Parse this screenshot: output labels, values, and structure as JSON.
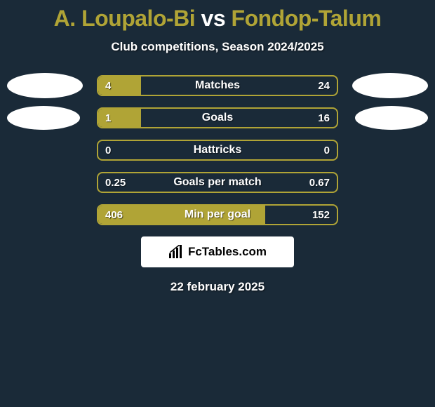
{
  "colors": {
    "bg": "#1a2a38",
    "accent": "#b0a436",
    "white": "#ffffff",
    "text_shadow": "rgba(0,0,0,0.55)"
  },
  "title": {
    "player1": "A. Loupalo-Bi",
    "vs": "vs",
    "player2": "Fondop-Talum"
  },
  "subtitle": "Club competitions, Season 2024/2025",
  "rows": [
    {
      "label": "Matches",
      "left_val": "4",
      "right_val": "24",
      "left_pct": 18,
      "right_pct": 0,
      "show_left_avatar": true,
      "show_right_avatar": true,
      "avatar_big": true
    },
    {
      "label": "Goals",
      "left_val": "1",
      "right_val": "16",
      "left_pct": 18,
      "right_pct": 0,
      "show_left_avatar": true,
      "show_right_avatar": true,
      "avatar_big": false
    },
    {
      "label": "Hattricks",
      "left_val": "0",
      "right_val": "0",
      "left_pct": 0,
      "right_pct": 0,
      "show_left_avatar": false,
      "show_right_avatar": false
    },
    {
      "label": "Goals per match",
      "left_val": "0.25",
      "right_val": "0.67",
      "left_pct": 0,
      "right_pct": 0,
      "show_left_avatar": false,
      "show_right_avatar": false
    },
    {
      "label": "Min per goal",
      "left_val": "406",
      "right_val": "152",
      "left_pct": 70,
      "right_pct": 0,
      "show_left_avatar": false,
      "show_right_avatar": false
    }
  ],
  "logo_text": "FcTables.com",
  "date": "22 february 2025",
  "bar_style": {
    "border_color": "#b0a436",
    "border_width": 2,
    "border_radius": 8,
    "height": 30,
    "font_size_label": 16,
    "font_size_value": 15
  }
}
